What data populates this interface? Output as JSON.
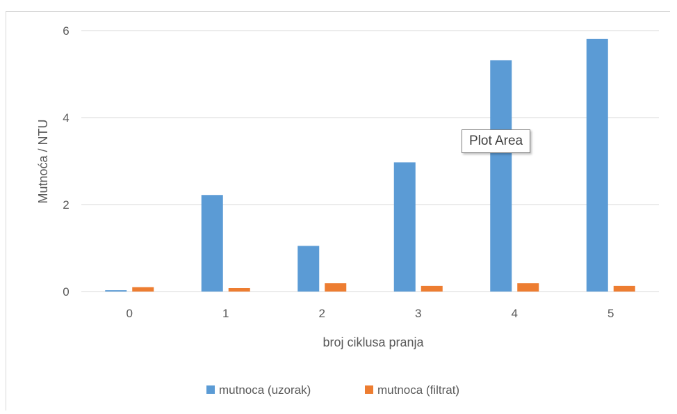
{
  "chart_data": {
    "type": "bar",
    "xlabel": "broj ciklusa pranja",
    "ylabel": "Mutnoća / NTU",
    "categories": [
      "0",
      "1",
      "2",
      "3",
      "4",
      "5"
    ],
    "ylim": [
      0,
      6
    ],
    "yticks": [
      0,
      2,
      4,
      6
    ],
    "grid": true,
    "legend_position": "bottom",
    "series": [
      {
        "name": "mutnoca (uzorak)",
        "color": "#5b9bd5",
        "values": [
          0.03,
          2.22,
          1.05,
          2.97,
          5.32,
          5.81
        ]
      },
      {
        "name": "mutnoca (filtrat)",
        "color": "#ed7d31",
        "values": [
          0.1,
          0.08,
          0.19,
          0.13,
          0.19,
          0.13
        ]
      }
    ]
  },
  "tooltip": {
    "label": "Plot Area"
  }
}
